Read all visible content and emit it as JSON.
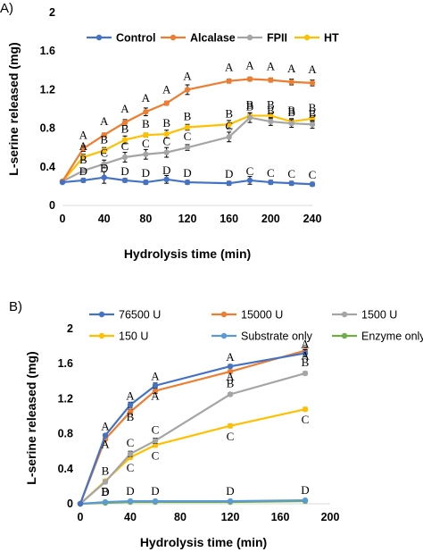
{
  "chart_data": [
    {
      "panel": "A)",
      "type": "line",
      "xlabel": "Hydrolysis time (min)",
      "ylabel": "L-serine released (mg)",
      "xlim": [
        0,
        240
      ],
      "ylim": [
        0,
        2
      ],
      "xticks": [
        0,
        40,
        80,
        120,
        160,
        200,
        240
      ],
      "yticks": [
        0,
        0.4,
        0.8,
        1.2,
        1.6,
        2
      ],
      "ytick_labels": [
        "0",
        "0.4",
        "0.8",
        "1.2",
        "1.6",
        "2"
      ],
      "grid": false,
      "legend": "top",
      "x": [
        0,
        20,
        40,
        60,
        80,
        100,
        120,
        160,
        180,
        200,
        220,
        240
      ],
      "series": [
        {
          "name": "Control",
          "color": "#4472c4",
          "values": [
            0.24,
            0.26,
            0.29,
            0.26,
            0.24,
            0.27,
            0.24,
            0.23,
            0.26,
            0.24,
            0.23,
            0.22
          ],
          "errors": [
            0,
            0.02,
            0.06,
            0.02,
            0.02,
            0.04,
            0.02,
            0.02,
            0.04,
            0.02,
            0.02,
            0.02
          ],
          "letters": [
            "",
            "D",
            "D",
            "D",
            "D",
            "D",
            "D",
            "D",
            "C",
            "C",
            "C",
            "C"
          ]
        },
        {
          "name": "Alcalase",
          "color": "#ed7d31",
          "values": [
            0.25,
            0.59,
            0.73,
            0.86,
            0.97,
            1.06,
            1.2,
            1.29,
            1.31,
            1.3,
            1.28,
            1.27
          ],
          "errors": [
            0,
            0.03,
            0.02,
            0.03,
            0.04,
            0.02,
            0.05,
            0.02,
            0.02,
            0.02,
            0.03,
            0.03
          ],
          "letters": [
            "",
            "A",
            "A",
            "A",
            "A",
            "A",
            "A",
            "A",
            "A",
            "A",
            "A",
            "A"
          ]
        },
        {
          "name": "FPII",
          "color": "#a5a5a5",
          "values": [
            0.25,
            0.36,
            0.43,
            0.5,
            0.53,
            0.55,
            0.6,
            0.71,
            0.91,
            0.87,
            0.85,
            0.84
          ],
          "errors": [
            0,
            0.02,
            0.04,
            0.05,
            0.05,
            0.05,
            0.03,
            0.05,
            0.05,
            0.04,
            0.04,
            0.04
          ],
          "letters": [
            "",
            "B",
            "C",
            "C",
            "C",
            "C",
            "C",
            "C",
            "B",
            "B",
            "B",
            "B"
          ]
        },
        {
          "name": "HT",
          "color": "#ffc000",
          "values": [
            0.25,
            0.5,
            0.57,
            0.68,
            0.73,
            0.74,
            0.81,
            0.84,
            0.93,
            0.93,
            0.87,
            0.9
          ],
          "errors": [
            0,
            0.03,
            0.03,
            0.04,
            0.02,
            0.04,
            0.03,
            0.04,
            0.03,
            0.03,
            0.03,
            0.03
          ],
          "letters": [
            "",
            "A",
            "B",
            "B",
            "B",
            "B",
            "B",
            "B",
            "B",
            "B",
            "B",
            "B"
          ]
        }
      ]
    },
    {
      "panel": "B)",
      "type": "line",
      "xlabel": "Hydrolysis time (min)",
      "ylabel": "L-serine released (mg)",
      "xlim": [
        0,
        200
      ],
      "ylim": [
        0,
        2
      ],
      "xticks": [
        0,
        40,
        80,
        120,
        160,
        200
      ],
      "yticks": [
        0,
        0.4,
        0.8,
        1.2,
        1.6,
        2
      ],
      "ytick_labels": [
        "0",
        "0.4",
        "0.8",
        "1.2",
        "1.6",
        "2"
      ],
      "grid": false,
      "legend": "top",
      "x": [
        0,
        20,
        40,
        60,
        120,
        180
      ],
      "series": [
        {
          "name": "76500 U",
          "color": "#4472c4",
          "values": [
            0,
            0.78,
            1.13,
            1.35,
            1.57,
            1.72
          ],
          "errors": [
            0,
            0.02,
            0.03,
            0.03,
            0.02,
            0.04
          ],
          "letters": [
            "",
            "A",
            "A",
            "A",
            "A",
            "A"
          ]
        },
        {
          "name": "15000 U",
          "color": "#ed7d31",
          "values": [
            0,
            0.74,
            1.05,
            1.29,
            1.51,
            1.75
          ],
          "errors": [
            0,
            0.02,
            0.03,
            0.03,
            0.02,
            0.04
          ],
          "letters": [
            "",
            "A",
            "B",
            "A",
            "A",
            "A"
          ]
        },
        {
          "name": "1500 U",
          "color": "#a5a5a5",
          "values": [
            0,
            0.25,
            0.57,
            0.72,
            1.25,
            1.49
          ],
          "errors": [
            0,
            0.02,
            0.03,
            0.03,
            0.02,
            0.02
          ],
          "letters": [
            "",
            "B",
            "C",
            "C",
            "B",
            "B"
          ]
        },
        {
          "name": "150 U",
          "color": "#ffc000",
          "values": [
            0,
            0.26,
            0.53,
            0.67,
            0.89,
            1.08
          ],
          "errors": [
            0,
            0.02,
            0.02,
            0.02,
            0.02,
            0.02
          ],
          "letters": [
            "",
            "B",
            "C",
            "C",
            "C",
            "C"
          ]
        },
        {
          "name": "Substrate only",
          "color": "#5b9bd5",
          "values": [
            0,
            0.02,
            0.03,
            0.03,
            0.03,
            0.04
          ],
          "errors": [
            0,
            0,
            0,
            0,
            0,
            0
          ],
          "letters": [
            "",
            "D",
            "D",
            "D",
            "D",
            "D"
          ]
        },
        {
          "name": "Enzyme only",
          "color": "#70ad47",
          "values": [
            0,
            0.01,
            0.02,
            0.02,
            0.02,
            0.03
          ],
          "errors": [
            0,
            0,
            0,
            0,
            0,
            0
          ],
          "letters": [
            "",
            "",
            "",
            "",
            "",
            ""
          ]
        }
      ]
    }
  ]
}
